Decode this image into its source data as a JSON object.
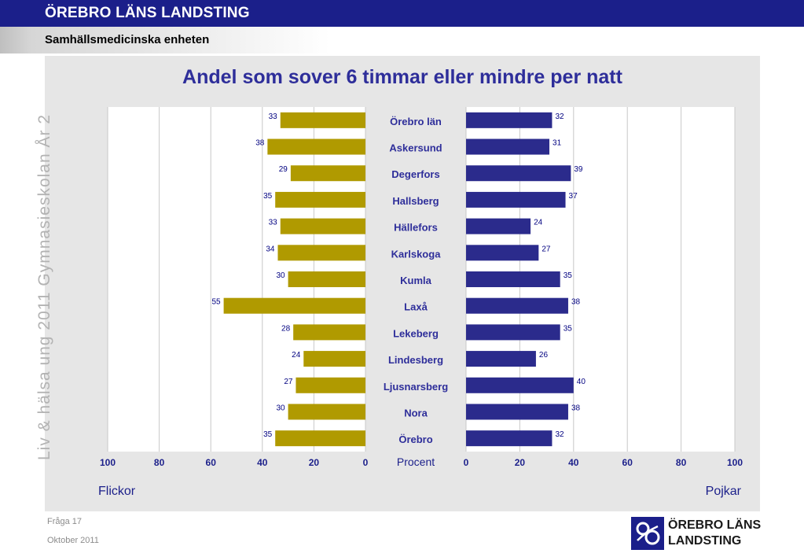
{
  "header": {
    "title": "ÖREBRO LÄNS LANDSTING",
    "subtitle": "Samhällsmedicinska enheten"
  },
  "side_label": "Liv & hälsa ung 2011 Gymnasieskolan År 2",
  "footer": {
    "question": "Fråga 17",
    "date": "Oktober 2011"
  },
  "logo": {
    "line1": "ÖREBRO LÄNS",
    "line2": "LANDSTING"
  },
  "colors": {
    "header_bg": "#1b1f8a",
    "title_text": "#2e2e9a",
    "girls_bar": "#b09a00",
    "boys_bar": "#2b2b8c",
    "panel_bg": "#e6e6e6",
    "plot_bg": "#ffffff"
  },
  "chart_data": {
    "type": "bar",
    "orientation": "horizontal",
    "layout": "back-to-back",
    "title": "Andel som sover 6 timmar eller mindre per natt",
    "center_axis_label": "Procent",
    "left_label": "Flickor",
    "right_label": "Pojkar",
    "categories": [
      "Örebro län",
      "Askersund",
      "Degerfors",
      "Hallsberg",
      "Hällefors",
      "Karlskoga",
      "Kumla",
      "Laxå",
      "Lekeberg",
      "Lindesberg",
      "Ljusnarsberg",
      "Nora",
      "Örebro"
    ],
    "series": [
      {
        "name": "Flickor",
        "values": [
          33,
          38,
          29,
          35,
          33,
          34,
          30,
          55,
          28,
          24,
          27,
          30,
          35
        ]
      },
      {
        "name": "Pojkar",
        "values": [
          32,
          31,
          39,
          37,
          24,
          27,
          35,
          38,
          35,
          26,
          40,
          38,
          32
        ]
      }
    ],
    "left_ticks": [
      "100",
      "80",
      "60",
      "40",
      "20",
      "0"
    ],
    "right_ticks": [
      "0",
      "20",
      "40",
      "60",
      "80",
      "100"
    ],
    "xlim": [
      0,
      100
    ],
    "grid": true,
    "data_labels": true
  }
}
